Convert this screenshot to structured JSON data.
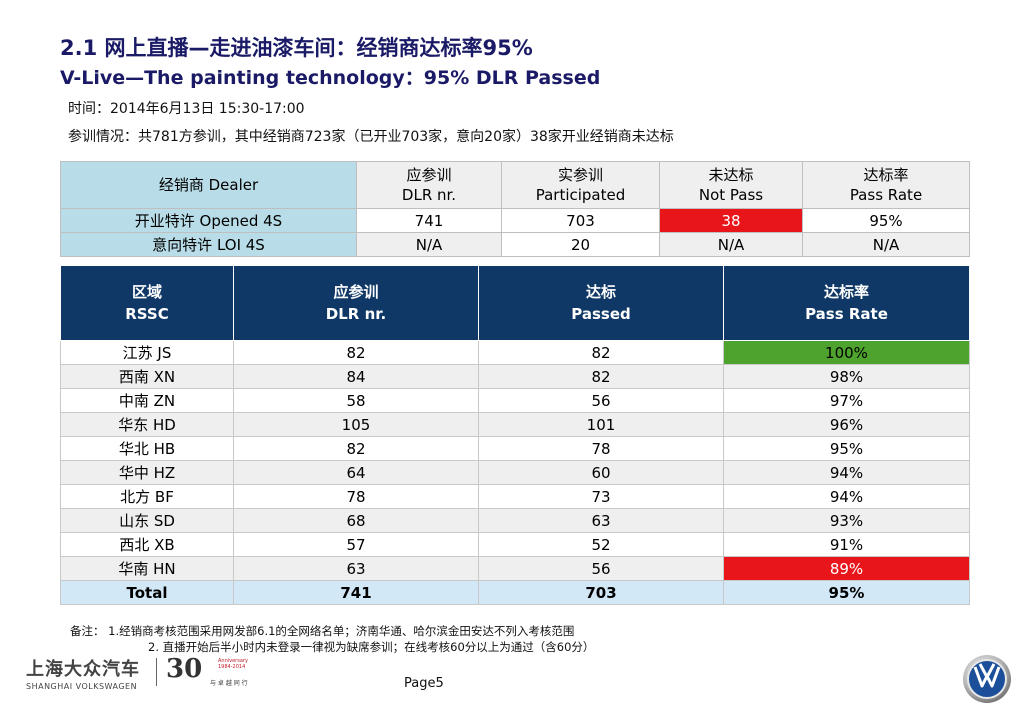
{
  "title": {
    "line1": "2.1 网上直播—走进油漆车间：经销商达标率95%",
    "line2": "V-Live—The painting technology：95% DLR  Passed"
  },
  "info": {
    "time": "时间：2014年6月13日 15:30-17:00",
    "summary": "参训情况：共781方参训，其中经销商723家（已开业703家，意向20家）38家开业经销商未达标"
  },
  "table1": {
    "headers": [
      [
        "经销商 Dealer"
      ],
      [
        "应参训",
        "DLR nr."
      ],
      [
        "实参训",
        "Participated"
      ],
      [
        "未达标",
        "Not Pass"
      ],
      [
        "达标率",
        "Pass Rate"
      ]
    ],
    "rows": [
      [
        "开业特许 Opened 4S",
        "741",
        "703",
        "38",
        "95%"
      ],
      [
        "意向特许 LOI 4S",
        "N/A",
        "20",
        "N/A",
        "N/A"
      ]
    ]
  },
  "table2": {
    "headers": [
      [
        "区域",
        "RSSC"
      ],
      [
        "应参训",
        "DLR nr."
      ],
      [
        "达标",
        "Passed"
      ],
      [
        "达标率",
        "Pass Rate"
      ]
    ],
    "rows": [
      [
        "江苏 JS",
        "82",
        "82",
        "100%"
      ],
      [
        "西南 XN",
        "84",
        "82",
        "98%"
      ],
      [
        "中南 ZN",
        "58",
        "56",
        "97%"
      ],
      [
        "华东 HD",
        "105",
        "101",
        "96%"
      ],
      [
        "华北 HB",
        "82",
        "78",
        "95%"
      ],
      [
        "华中 HZ",
        "64",
        "60",
        "94%"
      ],
      [
        "北方 BF",
        "78",
        "73",
        "94%"
      ],
      [
        "山东 SD",
        "68",
        "63",
        "93%"
      ],
      [
        "西北 XB",
        "57",
        "52",
        "91%"
      ],
      [
        "华南 HN",
        "63",
        "56",
        "89%"
      ]
    ],
    "total": [
      "Total",
      "741",
      "703",
      "95%"
    ]
  },
  "notes": {
    "line1": "备注：  1.经销商考核范围采用网发部6.1的全网络名单；济南华通、哈尔滨金田安达不列入考核范围",
    "line2": "2. 直播开始后半小时内未登录一律视为缺席参训；在线考核60分以上为通过（含60分）"
  },
  "footer": {
    "logo_cn": "上海大众汽车",
    "logo_en": "SHANGHAI  VOLKSWAGEN",
    "anniv_num": "30",
    "anniv_text": "Anniversary 1984-2014",
    "anniv_sub": "与 卓 越 同 行",
    "page": "Page5"
  },
  "colors": {
    "header_navy": "#0f3866",
    "dealer_blue": "#b9dde8",
    "alert_red": "#e8161b",
    "good_green": "#4ea22e",
    "total_blue": "#d2e8f7"
  }
}
